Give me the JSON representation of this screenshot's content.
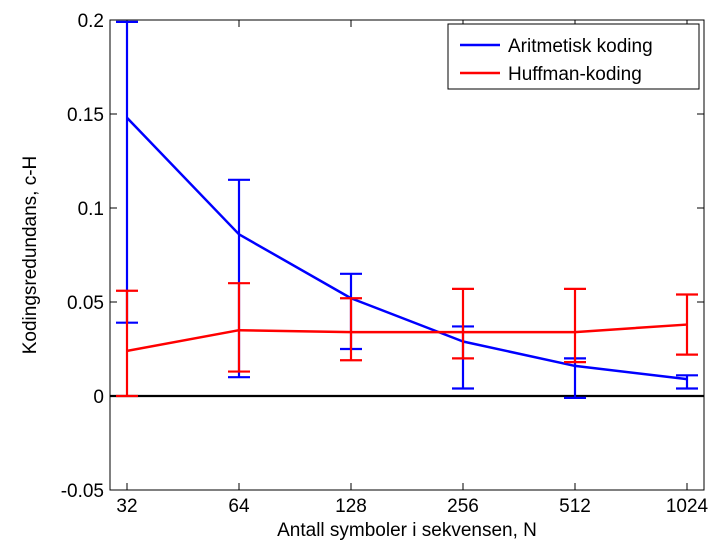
{
  "chart_data": {
    "type": "line",
    "title": "",
    "xlabel": "Antall symboler i sekvensen, N",
    "ylabel": "Kodingsredundans, c-H",
    "categories": [
      "32",
      "64",
      "128",
      "256",
      "512",
      "1024"
    ],
    "ylim": [
      -0.05,
      0.2
    ],
    "yticks": [
      "-0.05",
      "0",
      "0.05",
      "0.1",
      "0.15",
      "0.2"
    ],
    "grid": false,
    "legend_position": "top-right",
    "zero_line": true,
    "series": [
      {
        "name": "Aritmetisk koding",
        "color": "#0000ff",
        "values": [
          0.148,
          0.086,
          0.052,
          0.029,
          0.016,
          0.009
        ],
        "err_low": [
          0.039,
          0.01,
          0.025,
          0.004,
          -0.001,
          0.004
        ],
        "err_high": [
          0.199,
          0.115,
          0.065,
          0.037,
          0.02,
          0.011
        ]
      },
      {
        "name": "Huffman-koding",
        "color": "#ff0000",
        "values": [
          0.024,
          0.035,
          0.034,
          0.034,
          0.034,
          0.038
        ],
        "err_low": [
          0.0,
          0.013,
          0.019,
          0.02,
          0.018,
          0.022
        ],
        "err_high": [
          0.056,
          0.06,
          0.052,
          0.057,
          0.057,
          0.054
        ]
      }
    ]
  }
}
